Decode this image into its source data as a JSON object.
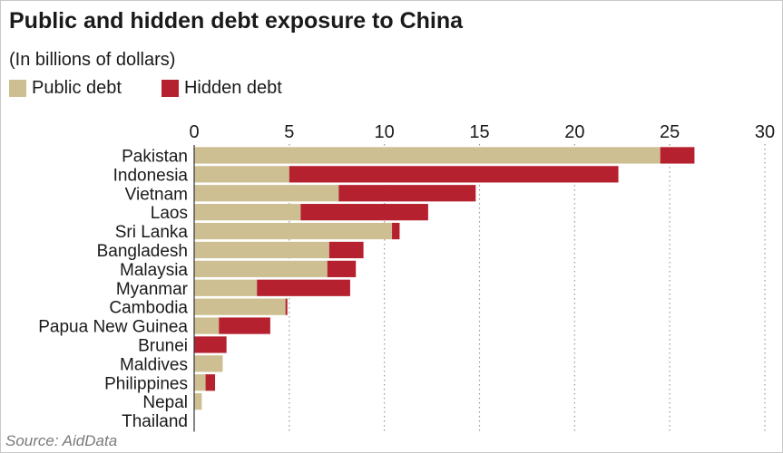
{
  "chart_data": {
    "type": "bar",
    "orientation": "horizontal",
    "stacked": true,
    "title": "Public and hidden debt exposure to China",
    "subtitle": "(In billions of dollars)",
    "source": "Source: AidData",
    "xlim": [
      0,
      30
    ],
    "x_ticks": [
      0,
      5,
      10,
      15,
      20,
      25,
      30
    ],
    "grid": "vertical dotted",
    "legend_placement": "top-left",
    "categories": [
      "Pakistan",
      "Indonesia",
      "Vietnam",
      "Laos",
      "Sri Lanka",
      "Bangladesh",
      "Malaysia",
      "Myanmar",
      "Cambodia",
      "Papua New Guinea",
      "Brunei",
      "Maldives",
      "Philippines",
      "Nepal",
      "Thailand"
    ],
    "series": [
      {
        "name": "Public debt",
        "color": "#cdbf91",
        "values": [
          24.5,
          5.0,
          7.6,
          5.6,
          10.4,
          7.1,
          7.0,
          3.3,
          4.8,
          1.3,
          0.0,
          1.5,
          0.6,
          0.4,
          0.0
        ]
      },
      {
        "name": "Hidden debt",
        "color": "#b5212e",
        "values": [
          1.8,
          17.3,
          7.2,
          6.7,
          0.4,
          1.8,
          1.5,
          4.9,
          0.1,
          2.7,
          1.7,
          0.0,
          0.5,
          0.0,
          0.0
        ]
      }
    ]
  },
  "colors": {
    "public": "#cdbf91",
    "hidden": "#b5212e",
    "grid": "#9a9a9a",
    "axis": "#333333"
  }
}
